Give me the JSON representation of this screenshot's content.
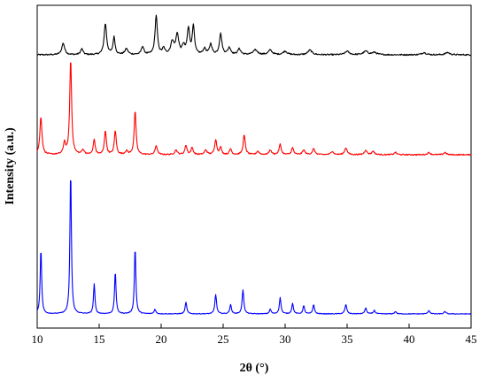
{
  "chart_data": {
    "type": "line",
    "title": "",
    "xlabel": "2θ (°)",
    "ylabel": "Intensity (a.u.)",
    "xlim": [
      10,
      45
    ],
    "x_ticks": [
      10,
      15,
      20,
      25,
      30,
      35,
      40,
      45
    ],
    "y_ticks_shown": false,
    "grid": false,
    "legend": "none",
    "stacked_offset": true,
    "series": [
      {
        "color": "#000000",
        "baseline": 0.0,
        "noise": 0.012,
        "peaks": [
          [
            12.1,
            0.1,
            0.14
          ],
          [
            13.6,
            0.05,
            0.12
          ],
          [
            15.5,
            0.27,
            0.12
          ],
          [
            16.2,
            0.15,
            0.1
          ],
          [
            17.2,
            0.05,
            0.15
          ],
          [
            18.5,
            0.07,
            0.12
          ],
          [
            19.6,
            0.34,
            0.11
          ],
          [
            20.2,
            0.05,
            0.12
          ],
          [
            20.9,
            0.11,
            0.15
          ],
          [
            21.3,
            0.17,
            0.14
          ],
          [
            21.8,
            0.07,
            0.12
          ],
          [
            22.2,
            0.22,
            0.12
          ],
          [
            22.6,
            0.25,
            0.1
          ],
          [
            23.5,
            0.05,
            0.14
          ],
          [
            24.0,
            0.09,
            0.12
          ],
          [
            24.8,
            0.18,
            0.12
          ],
          [
            25.5,
            0.06,
            0.14
          ],
          [
            26.3,
            0.05,
            0.14
          ],
          [
            27.6,
            0.04,
            0.22
          ],
          [
            28.8,
            0.04,
            0.18
          ],
          [
            30.0,
            0.03,
            0.2
          ],
          [
            32.0,
            0.04,
            0.2
          ],
          [
            35.0,
            0.03,
            0.2
          ],
          [
            36.5,
            0.03,
            0.22
          ],
          [
            37.2,
            0.02,
            0.22
          ],
          [
            41.2,
            0.02,
            0.2
          ],
          [
            43.1,
            0.02,
            0.2
          ]
        ]
      },
      {
        "color": "#ff0000",
        "baseline": 0.0,
        "noise": 0.01,
        "peaks": [
          [
            10.3,
            0.33,
            0.1
          ],
          [
            12.2,
            0.1,
            0.1
          ],
          [
            12.7,
            0.83,
            0.09
          ],
          [
            13.7,
            0.04,
            0.12
          ],
          [
            14.6,
            0.13,
            0.09
          ],
          [
            15.5,
            0.21,
            0.09
          ],
          [
            16.3,
            0.21,
            0.09
          ],
          [
            17.2,
            0.03,
            0.12
          ],
          [
            17.9,
            0.38,
            0.09
          ],
          [
            19.6,
            0.08,
            0.1
          ],
          [
            21.2,
            0.04,
            0.12
          ],
          [
            22.0,
            0.08,
            0.1
          ],
          [
            22.5,
            0.06,
            0.1
          ],
          [
            23.6,
            0.04,
            0.12
          ],
          [
            24.4,
            0.13,
            0.1
          ],
          [
            24.8,
            0.06,
            0.1
          ],
          [
            25.6,
            0.05,
            0.1
          ],
          [
            26.7,
            0.17,
            0.1
          ],
          [
            27.8,
            0.03,
            0.12
          ],
          [
            28.8,
            0.04,
            0.12
          ],
          [
            29.6,
            0.09,
            0.1
          ],
          [
            30.6,
            0.06,
            0.1
          ],
          [
            31.5,
            0.04,
            0.12
          ],
          [
            32.3,
            0.05,
            0.12
          ],
          [
            33.8,
            0.03,
            0.12
          ],
          [
            34.9,
            0.06,
            0.12
          ],
          [
            36.5,
            0.04,
            0.12
          ],
          [
            37.1,
            0.03,
            0.12
          ],
          [
            38.9,
            0.02,
            0.12
          ],
          [
            41.6,
            0.02,
            0.12
          ],
          [
            42.9,
            0.02,
            0.12
          ]
        ]
      },
      {
        "color": "#0000ff",
        "baseline": 0.0,
        "noise": 0.006,
        "peaks": [
          [
            10.3,
            0.57,
            0.07
          ],
          [
            12.7,
            1.25,
            0.07
          ],
          [
            14.6,
            0.26,
            0.07
          ],
          [
            16.3,
            0.37,
            0.07
          ],
          [
            17.9,
            0.58,
            0.07
          ],
          [
            19.5,
            0.04,
            0.08
          ],
          [
            22.0,
            0.1,
            0.08
          ],
          [
            24.4,
            0.17,
            0.08
          ],
          [
            25.6,
            0.08,
            0.08
          ],
          [
            26.6,
            0.21,
            0.08
          ],
          [
            28.8,
            0.04,
            0.08
          ],
          [
            29.6,
            0.14,
            0.08
          ],
          [
            30.6,
            0.09,
            0.08
          ],
          [
            31.5,
            0.07,
            0.08
          ],
          [
            32.3,
            0.08,
            0.08
          ],
          [
            34.9,
            0.08,
            0.09
          ],
          [
            36.5,
            0.05,
            0.09
          ],
          [
            37.2,
            0.03,
            0.09
          ],
          [
            38.9,
            0.02,
            0.09
          ],
          [
            41.6,
            0.03,
            0.09
          ],
          [
            42.9,
            0.02,
            0.09
          ]
        ]
      }
    ]
  }
}
